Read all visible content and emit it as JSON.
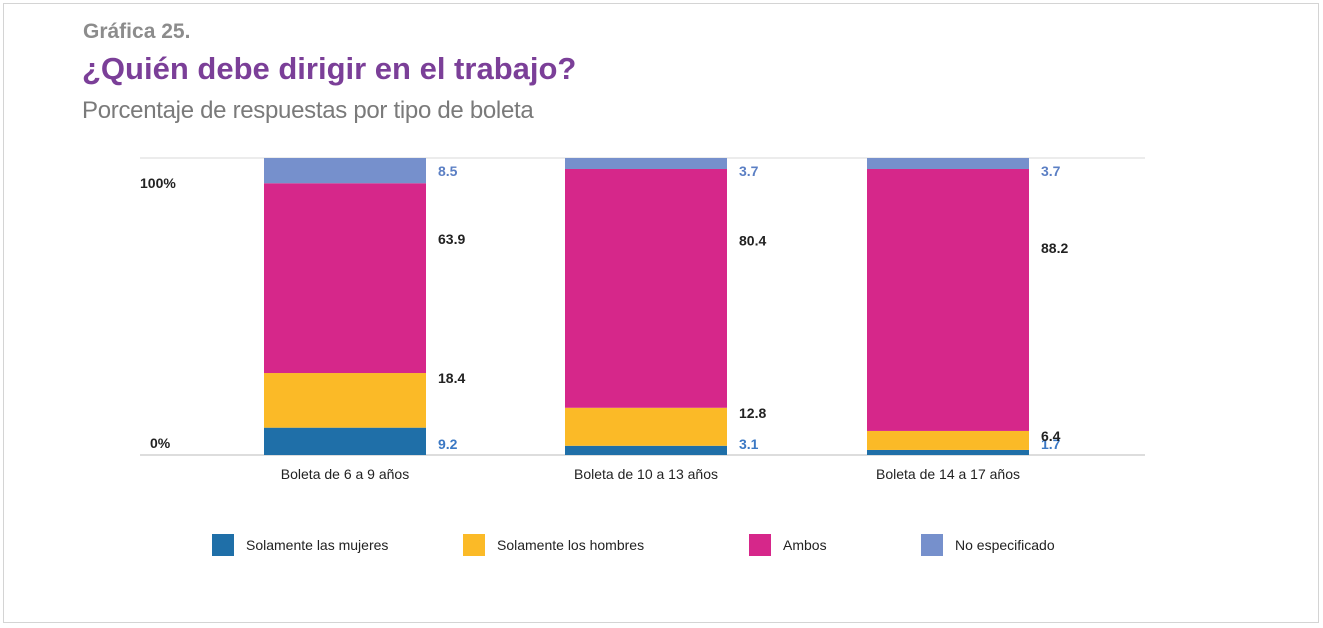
{
  "header": {
    "kicker": "Gráfica 25.",
    "title": "¿Quién debe dirigir en el trabajo?",
    "subtitle": "Porcentaje de respuestas por tipo de boleta"
  },
  "chart_data": {
    "type": "bar",
    "stacked": true,
    "categories": [
      "Boleta de 6 a 9 años",
      "Boleta de 10 a 13 años",
      "Boleta de 14 a 17 años"
    ],
    "series": [
      {
        "name": "Solamente las mujeres",
        "color": "#1f6fa8",
        "label_color": "#3b78c4",
        "values": [
          9.2,
          3.1,
          1.7
        ]
      },
      {
        "name": "Solamente los hombres",
        "color": "#fbba27",
        "label_color": "#222222",
        "values": [
          18.4,
          12.8,
          6.4
        ]
      },
      {
        "name": "Ambos",
        "color": "#d6278a",
        "label_color": "#222222",
        "values": [
          63.9,
          80.4,
          88.2
        ]
      },
      {
        "name": "No especificado",
        "color": "#7690cc",
        "label_color": "#5b7fc4",
        "values": [
          8.5,
          3.7,
          3.7
        ]
      }
    ],
    "y_tick_labels": [
      "100%",
      "0%"
    ],
    "ylim": [
      0,
      100
    ],
    "legend_position": "bottom"
  }
}
